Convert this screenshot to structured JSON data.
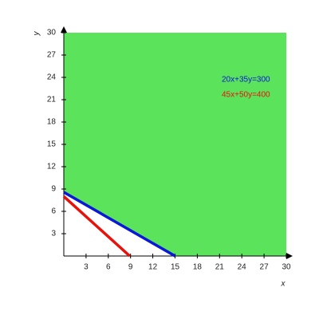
{
  "chart_data": {
    "type": "line",
    "x_label": "x",
    "y_label": "y",
    "xlim": [
      0,
      30
    ],
    "ylim": [
      0,
      30
    ],
    "xticks": [
      3,
      6,
      9,
      12,
      15,
      18,
      21,
      24,
      27,
      30
    ],
    "yticks": [
      3,
      6,
      9,
      12,
      15,
      18,
      21,
      24,
      27,
      30
    ],
    "region": {
      "color": "#5ce35c",
      "x": [
        0,
        15,
        30,
        30,
        0
      ],
      "y": [
        8.571,
        0,
        0,
        30,
        30
      ]
    },
    "series": [
      {
        "name": "20x+35y=300",
        "color": "#0a17d8",
        "x": [
          0,
          15
        ],
        "values": [
          8.571,
          0
        ]
      },
      {
        "name": "45x+50y=400",
        "color": "#e8120c",
        "x": [
          0,
          8.889
        ],
        "values": [
          8,
          0
        ]
      }
    ]
  }
}
